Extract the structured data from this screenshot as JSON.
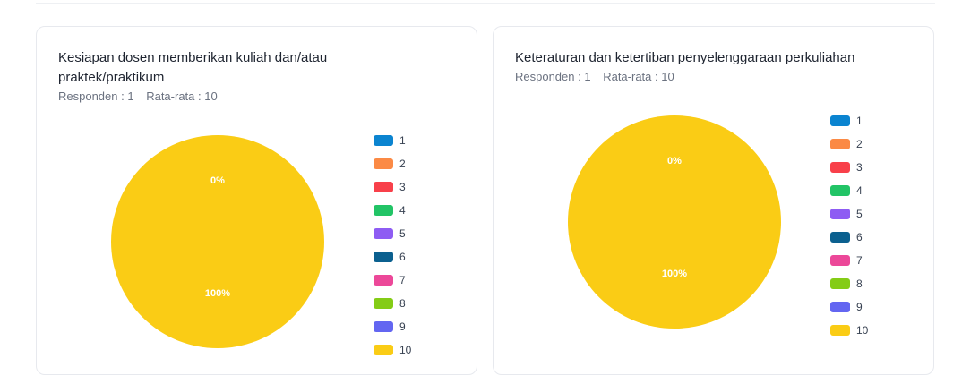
{
  "chart_data": [
    {
      "type": "pie",
      "title": "Kesiapan dosen memberikan kuliah dan/atau praktek/praktikum",
      "respondents_text": "Responden : 1",
      "average_text": "Rata-rata : 10",
      "categories": [
        "1",
        "2",
        "3",
        "4",
        "5",
        "6",
        "7",
        "8",
        "9",
        "10"
      ],
      "values": [
        0,
        0,
        0,
        0,
        0,
        0,
        0,
        0,
        0,
        1
      ],
      "data_labels": [
        {
          "text": "0%"
        },
        {
          "text": "100%"
        }
      ],
      "legend_position": "right"
    },
    {
      "type": "pie",
      "title": "Keteraturan dan ketertiban penyelenggaraan perkuliahan",
      "respondents_text": "Responden : 1",
      "average_text": "Rata-rata : 10",
      "categories": [
        "1",
        "2",
        "3",
        "4",
        "5",
        "6",
        "7",
        "8",
        "9",
        "10"
      ],
      "values": [
        0,
        0,
        0,
        0,
        0,
        0,
        0,
        0,
        0,
        1
      ],
      "data_labels": [
        {
          "text": "0%"
        },
        {
          "text": "100%"
        }
      ],
      "legend_position": "right"
    }
  ],
  "colors": [
    "#0b84d0",
    "#fb8a45",
    "#f8404a",
    "#22c466",
    "#8e5cf3",
    "#0b608f",
    "#ec4899",
    "#84cc16",
    "#6366f1",
    "#facc15"
  ]
}
